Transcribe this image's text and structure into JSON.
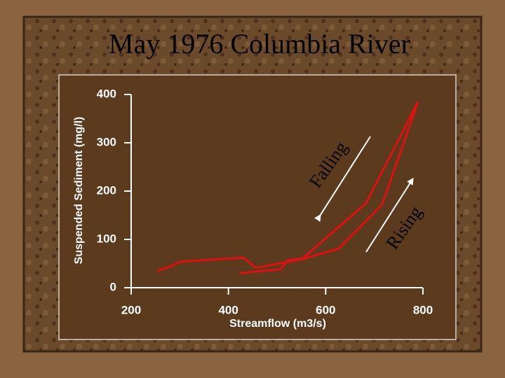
{
  "chart_data": {
    "type": "line",
    "title": "May 1976 Columbia River",
    "x_label": "Streamflow (m3/s)",
    "y_label": "Suspended Sediment (mg/l)",
    "xlim": [
      200,
      800
    ],
    "xticks": [
      200,
      400,
      600,
      800
    ],
    "ylim": [
      0,
      400
    ],
    "yticks": [
      0,
      100,
      200,
      300,
      400
    ],
    "series": [
      {
        "name": "Rising",
        "color": "#e01010",
        "x": [
          424,
          507,
          522,
          555,
          627,
          716,
          790
        ],
        "values": [
          30,
          38,
          57,
          60,
          81,
          172,
          385
        ]
      },
      {
        "name": "Falling",
        "color": "#e01010",
        "x": [
          790,
          683,
          551,
          457,
          431,
          302,
          276,
          253
        ],
        "values": [
          385,
          175,
          59,
          41,
          62,
          54,
          42,
          35
        ]
      }
    ]
  }
}
